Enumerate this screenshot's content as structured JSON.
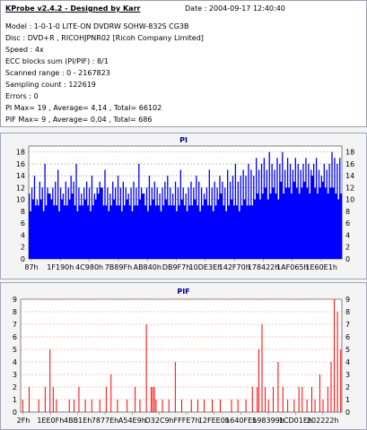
{
  "info": {
    "title": "KProbe v2.4.2 - Designed by Karr",
    "date": "Date : 2004-09-17 12:40:40",
    "lines": [
      "Model : 1-0-1-0 LITE-ON DVDRW SOHW-832S  CG3B",
      "Disc : DVD+R , RICOHJPNR02 [Ricoh Company Limited]",
      "Speed : 4x",
      "ECC blocks sum (PI/PIF) : 8/1",
      "Scanned range : 0 - 2167823",
      "Sampling count : 122619",
      "Errors : 0",
      "PI Max= 19 , Average= 4,14 , Total= 66102",
      "PIF Max= 9 , Average= 0,04 , Total= 686"
    ]
  },
  "chart_data": [
    {
      "type": "bar",
      "title": "PI",
      "color": "#0000ff",
      "ylim": [
        0,
        19
      ],
      "yticks": [
        0,
        2,
        4,
        6,
        8,
        10,
        12,
        14,
        16,
        18
      ],
      "xticks": [
        "87h",
        "1F190h",
        "4C980h",
        "7B89Fh",
        "AB840h",
        "DB9F7h",
        "10DE3Eh",
        "142F70h",
        "178422h",
        "1AF065h",
        "1E60E1h"
      ],
      "grid": true,
      "baseline_range": [
        7,
        11
      ],
      "max_value": 19,
      "average": 4.14,
      "series": [
        {
          "values": [
            8,
            10,
            9,
            9,
            10,
            8,
            9,
            11,
            10,
            9,
            9,
            8,
            10,
            9,
            9,
            10,
            11,
            9,
            8,
            9,
            9,
            10,
            9,
            8,
            9,
            10,
            11,
            12,
            9,
            9,
            8,
            9,
            10,
            9,
            9,
            8,
            9,
            10,
            9,
            8,
            9,
            9,
            10,
            11,
            9,
            8,
            9,
            10,
            9,
            9,
            8,
            9,
            10,
            9,
            9,
            9,
            8,
            9,
            10,
            9,
            8,
            9,
            9,
            10,
            9,
            8,
            9,
            10,
            9,
            9,
            8,
            9,
            10,
            11,
            9,
            8,
            9,
            10,
            9,
            9,
            8,
            9,
            10,
            9,
            9,
            9,
            10,
            11,
            10,
            11,
            12,
            10,
            11,
            12,
            11,
            10,
            13,
            11,
            12,
            12,
            11,
            13,
            12,
            11,
            12,
            13,
            12,
            11,
            14,
            12,
            11,
            12,
            13,
            12,
            11,
            12,
            12,
            11,
            10,
            11
          ]
        },
        {
          "values": [
            11,
            12,
            14,
            10,
            13,
            12,
            16,
            12,
            11,
            12,
            13,
            15,
            12,
            11,
            13,
            12,
            14,
            13,
            16,
            12,
            11,
            12,
            13,
            12,
            14,
            11,
            12,
            13,
            12,
            15,
            12,
            11,
            13,
            12,
            14,
            12,
            13,
            12,
            11,
            12,
            13,
            12,
            16,
            12,
            11,
            12,
            14,
            12,
            13,
            12,
            11,
            12,
            13,
            14,
            12,
            11,
            13,
            12,
            15,
            12,
            11,
            12,
            13,
            12,
            14,
            13,
            12,
            11,
            12,
            15,
            12,
            13,
            12,
            14,
            13,
            12,
            15,
            13,
            14,
            16,
            13,
            14,
            15,
            14,
            16,
            15,
            14,
            17,
            15,
            16,
            17,
            15,
            18,
            16,
            15,
            17,
            16,
            18,
            15,
            17,
            16,
            15,
            17,
            16,
            15,
            16,
            17,
            16,
            15,
            16,
            17,
            15,
            14,
            16,
            15,
            16,
            18,
            17,
            16,
            17
          ]
        }
      ]
    },
    {
      "type": "bar",
      "title": "PIF",
      "color": "#ff0000",
      "ylim": [
        0,
        9
      ],
      "yticks": [
        0,
        1,
        2,
        3,
        4,
        5,
        6,
        7,
        8,
        9
      ],
      "xticks": [
        "2Fh",
        "1EE0Fh",
        "4BB1Eh",
        "7877Eh",
        "A54E9h",
        "D32C9h",
        "FFFE7h",
        "12FEE0h",
        "1640FEh",
        "198399h",
        "1CD01Eh",
        "202222h"
      ],
      "grid": true,
      "max_value": 9,
      "average": 0.04,
      "spikes": [
        {
          "x": 0.005,
          "value": 1
        },
        {
          "x": 0.025,
          "value": 2
        },
        {
          "x": 0.055,
          "value": 1
        },
        {
          "x": 0.075,
          "value": 2
        },
        {
          "x": 0.09,
          "value": 5
        },
        {
          "x": 0.1,
          "value": 2
        },
        {
          "x": 0.11,
          "value": 1
        },
        {
          "x": 0.15,
          "value": 1
        },
        {
          "x": 0.165,
          "value": 1
        },
        {
          "x": 0.18,
          "value": 2
        },
        {
          "x": 0.2,
          "value": 1
        },
        {
          "x": 0.22,
          "value": 1
        },
        {
          "x": 0.245,
          "value": 1
        },
        {
          "x": 0.265,
          "value": 2
        },
        {
          "x": 0.28,
          "value": 3
        },
        {
          "x": 0.3,
          "value": 1
        },
        {
          "x": 0.33,
          "value": 1
        },
        {
          "x": 0.355,
          "value": 2
        },
        {
          "x": 0.37,
          "value": 1
        },
        {
          "x": 0.39,
          "value": 7
        },
        {
          "x": 0.405,
          "value": 2
        },
        {
          "x": 0.41,
          "value": 2
        },
        {
          "x": 0.415,
          "value": 2
        },
        {
          "x": 0.42,
          "value": 1
        },
        {
          "x": 0.44,
          "value": 1
        },
        {
          "x": 0.46,
          "value": 1
        },
        {
          "x": 0.48,
          "value": 4
        },
        {
          "x": 0.5,
          "value": 1
        },
        {
          "x": 0.53,
          "value": 1
        },
        {
          "x": 0.55,
          "value": 1
        },
        {
          "x": 0.57,
          "value": 1
        },
        {
          "x": 0.595,
          "value": 1
        },
        {
          "x": 0.62,
          "value": 1
        },
        {
          "x": 0.655,
          "value": 1
        },
        {
          "x": 0.675,
          "value": 1
        },
        {
          "x": 0.7,
          "value": 1
        },
        {
          "x": 0.72,
          "value": 2
        },
        {
          "x": 0.735,
          "value": 2
        },
        {
          "x": 0.74,
          "value": 5
        },
        {
          "x": 0.75,
          "value": 7
        },
        {
          "x": 0.76,
          "value": 2
        },
        {
          "x": 0.77,
          "value": 1
        },
        {
          "x": 0.785,
          "value": 2
        },
        {
          "x": 0.8,
          "value": 4
        },
        {
          "x": 0.815,
          "value": 2
        },
        {
          "x": 0.83,
          "value": 1
        },
        {
          "x": 0.85,
          "value": 1
        },
        {
          "x": 0.865,
          "value": 2
        },
        {
          "x": 0.875,
          "value": 2
        },
        {
          "x": 0.89,
          "value": 1
        },
        {
          "x": 0.905,
          "value": 2
        },
        {
          "x": 0.915,
          "value": 1
        },
        {
          "x": 0.93,
          "value": 3
        },
        {
          "x": 0.94,
          "value": 1
        },
        {
          "x": 0.955,
          "value": 2
        },
        {
          "x": 0.965,
          "value": 4
        },
        {
          "x": 0.975,
          "value": 9
        },
        {
          "x": 0.985,
          "value": 8
        },
        {
          "x": 0.995,
          "value": 5
        }
      ]
    }
  ]
}
